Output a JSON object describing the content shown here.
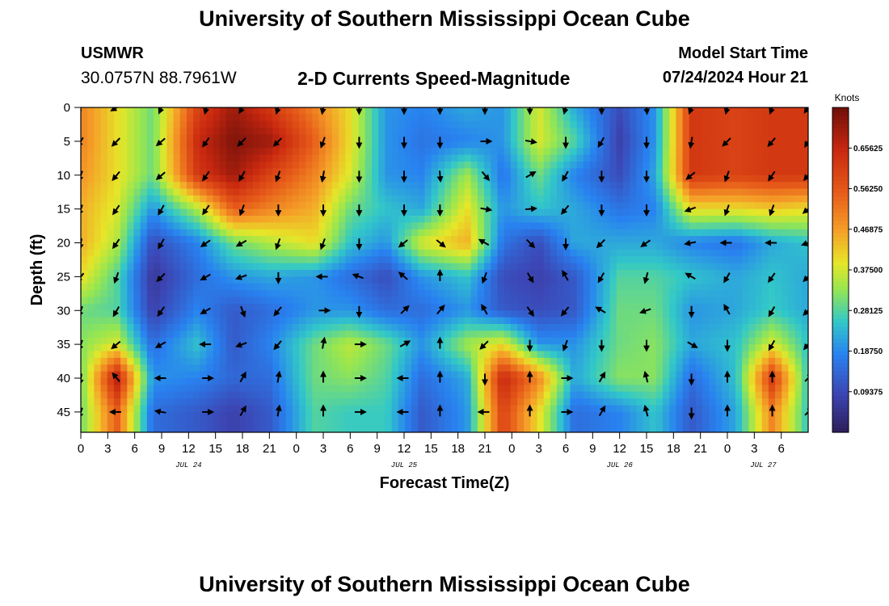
{
  "header": {
    "title": "University of Southern Mississippi Ocean Cube",
    "station": "USMWR",
    "coordinates": "30.0757N  88.7961W",
    "subtitle": "2-D Currents Speed-Magnitude",
    "start_label": "Model Start Time",
    "start_value": "07/24/2024 Hour 21"
  },
  "footer": {
    "title": "University of Southern Mississippi Ocean Cube"
  },
  "chart_data": {
    "type": "heatmap",
    "title": "2-D Currents Speed-Magnitude",
    "xlabel": "Forecast Time(Z)",
    "ylabel": "Depth (ft)",
    "x_hours_from_jul24_00": [
      0,
      81
    ],
    "x_tick_step_hours": 3,
    "x_tick_labels": [
      "0",
      "3",
      "6",
      "9",
      "12",
      "15",
      "18",
      "21",
      "0",
      "3",
      "6",
      "9",
      "12",
      "15",
      "18",
      "21",
      "0",
      "3",
      "6",
      "9",
      "12",
      "15",
      "18",
      "21",
      "0",
      "3",
      "6"
    ],
    "date_labels": [
      {
        "hour": 12,
        "label": "JUL 24"
      },
      {
        "hour": 36,
        "label": "JUL 25"
      },
      {
        "hour": 60,
        "label": "JUL 26"
      },
      {
        "hour": 76,
        "label": "JUL 27"
      }
    ],
    "ylim": [
      0,
      48
    ],
    "y_ticks": [
      "0",
      "5",
      "10",
      "15",
      "20",
      "25",
      "30",
      "35",
      "40",
      "45"
    ],
    "colorbar": {
      "unit": "Knots",
      "range": [
        0,
        0.75
      ],
      "tick_labels": [
        "0.65625",
        "0.56250",
        "0.46875",
        "0.37500",
        "0.28125",
        "0.18750",
        "0.09375"
      ]
    },
    "arrow_columns_hours": [
      0,
      4,
      9,
      14,
      18,
      22,
      27,
      31,
      36,
      40,
      45,
      50,
      54,
      58,
      63,
      68,
      72,
      77,
      81
    ],
    "arrow_depths_ft": [
      0,
      5,
      10,
      15,
      20,
      25,
      30,
      35,
      40,
      45
    ],
    "speed_knots": [
      [
        0.5,
        0.4,
        0.3,
        0.6,
        0.7,
        0.62,
        0.5,
        0.4,
        0.2,
        0.18,
        0.22,
        0.2,
        0.38,
        0.22,
        0.1,
        0.2,
        0.62,
        0.6,
        0.62,
        0.62
      ],
      [
        0.5,
        0.4,
        0.3,
        0.65,
        0.73,
        0.7,
        0.55,
        0.4,
        0.2,
        0.16,
        0.18,
        0.2,
        0.38,
        0.28,
        0.08,
        0.2,
        0.62,
        0.6,
        0.62,
        0.62
      ],
      [
        0.48,
        0.4,
        0.3,
        0.62,
        0.7,
        0.6,
        0.5,
        0.38,
        0.2,
        0.18,
        0.34,
        0.16,
        0.3,
        0.18,
        0.1,
        0.22,
        0.62,
        0.6,
        0.62,
        0.62
      ],
      [
        0.45,
        0.38,
        0.2,
        0.35,
        0.55,
        0.5,
        0.45,
        0.3,
        0.25,
        0.22,
        0.4,
        0.2,
        0.25,
        0.22,
        0.16,
        0.18,
        0.4,
        0.4,
        0.42,
        0.4
      ],
      [
        0.45,
        0.35,
        0.1,
        0.18,
        0.3,
        0.35,
        0.4,
        0.25,
        0.2,
        0.38,
        0.45,
        0.16,
        0.1,
        0.22,
        0.22,
        0.22,
        0.18,
        0.16,
        0.22,
        0.25
      ],
      [
        0.4,
        0.28,
        0.06,
        0.15,
        0.2,
        0.22,
        0.2,
        0.15,
        0.1,
        0.2,
        0.25,
        0.1,
        0.08,
        0.12,
        0.28,
        0.28,
        0.25,
        0.22,
        0.25,
        0.22
      ],
      [
        0.3,
        0.28,
        0.08,
        0.18,
        0.12,
        0.15,
        0.2,
        0.2,
        0.15,
        0.15,
        0.2,
        0.12,
        0.1,
        0.12,
        0.3,
        0.3,
        0.2,
        0.22,
        0.26,
        0.22
      ],
      [
        0.32,
        0.38,
        0.15,
        0.25,
        0.12,
        0.18,
        0.3,
        0.36,
        0.3,
        0.2,
        0.34,
        0.4,
        0.2,
        0.2,
        0.3,
        0.32,
        0.22,
        0.25,
        0.38,
        0.25
      ],
      [
        0.3,
        0.68,
        0.2,
        0.18,
        0.14,
        0.15,
        0.3,
        0.32,
        0.28,
        0.15,
        0.22,
        0.66,
        0.5,
        0.22,
        0.32,
        0.32,
        0.15,
        0.25,
        0.62,
        0.25
      ],
      [
        0.3,
        0.55,
        0.15,
        0.12,
        0.08,
        0.12,
        0.28,
        0.26,
        0.26,
        0.12,
        0.2,
        0.6,
        0.4,
        0.15,
        0.18,
        0.25,
        0.12,
        0.22,
        0.5,
        0.25
      ]
    ],
    "speed_grid_hours": [
      0,
      4,
      8,
      13,
      17,
      21,
      26,
      30,
      34,
      38,
      43,
      47,
      51,
      55,
      60,
      64,
      68,
      73,
      77,
      81
    ],
    "speed_grid_depths_ft": [
      0,
      5,
      10,
      15,
      20,
      25,
      30,
      35,
      40,
      45
    ],
    "arrow_angles_deg": [
      [
        225,
        240,
        205,
        195,
        210,
        200,
        190,
        180,
        180,
        180,
        180,
        180,
        195,
        180,
        175,
        200,
        195,
        200,
        215
      ],
      [
        210,
        225,
        230,
        215,
        225,
        225,
        200,
        180,
        180,
        180,
        90,
        100,
        180,
        210,
        180,
        190,
        225,
        220,
        210
      ],
      [
        200,
        220,
        230,
        215,
        210,
        200,
        190,
        180,
        180,
        175,
        140,
        60,
        210,
        180,
        180,
        230,
        200,
        215,
        220
      ],
      [
        200,
        215,
        210,
        215,
        200,
        180,
        180,
        180,
        180,
        180,
        100,
        85,
        220,
        180,
        180,
        250,
        200,
        200,
        230
      ],
      [
        190,
        215,
        210,
        235,
        240,
        200,
        200,
        180,
        230,
        130,
        300,
        135,
        180,
        225,
        235,
        260,
        270,
        270,
        250
      ],
      [
        220,
        200,
        225,
        240,
        250,
        180,
        270,
        290,
        310,
        0,
        200,
        150,
        330,
        210,
        195,
        300,
        210,
        215,
        225
      ],
      [
        200,
        210,
        215,
        240,
        160,
        220,
        90,
        180,
        45,
        40,
        330,
        145,
        220,
        300,
        250,
        180,
        330,
        210,
        225
      ],
      [
        200,
        230,
        240,
        270,
        250,
        220,
        10,
        90,
        60,
        0,
        225,
        180,
        200,
        180,
        180,
        120,
        180,
        210,
        220
      ],
      [
        190,
        320,
        270,
        90,
        30,
        10,
        0,
        90,
        270,
        0,
        180,
        0,
        90,
        30,
        345,
        180,
        0,
        0,
        45
      ],
      [
        200,
        270,
        280,
        90,
        30,
        10,
        0,
        90,
        270,
        0,
        270,
        0,
        90,
        30,
        345,
        180,
        0,
        0,
        45
      ]
    ]
  }
}
